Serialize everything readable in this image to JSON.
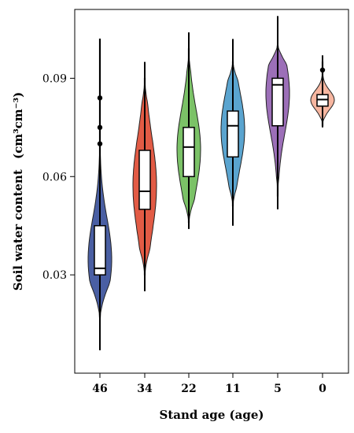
{
  "chart_data": {
    "type": "violin",
    "xlabel": "Stand age (age)",
    "ylabel": "Soil water content",
    "ylabel_unit": "(cm³cm⁻³)",
    "categories": [
      "46",
      "34",
      "22",
      "11",
      "5",
      "0"
    ],
    "ylim": [
      0.0,
      0.111
    ],
    "yticks": [
      0.03,
      0.06,
      0.09
    ],
    "ytick_labels": [
      "0.03",
      "0.06",
      "0.09"
    ],
    "grid": false,
    "legend": "none",
    "groups": [
      {
        "name": "46",
        "color": "#4a5fa3",
        "whisker_low": 0.007,
        "whisker_high": 0.102,
        "q1": 0.03,
        "median": 0.032,
        "q3": 0.045,
        "violin_min": 0.017,
        "violin_max": 0.102,
        "outliers": [
          0.084,
          0.075,
          0.07
        ]
      },
      {
        "name": "34",
        "color": "#e25b45",
        "whisker_low": 0.025,
        "whisker_high": 0.095,
        "q1": 0.05,
        "median": 0.0555,
        "q3": 0.068,
        "violin_min": 0.03,
        "violin_max": 0.09,
        "outliers": []
      },
      {
        "name": "22",
        "color": "#7bc267",
        "whisker_low": 0.044,
        "whisker_high": 0.104,
        "q1": 0.06,
        "median": 0.069,
        "q3": 0.075,
        "violin_min": 0.046,
        "violin_max": 0.099,
        "outliers": []
      },
      {
        "name": "11",
        "color": "#5aa4cf",
        "whisker_low": 0.045,
        "whisker_high": 0.102,
        "q1": 0.066,
        "median": 0.0755,
        "q3": 0.08,
        "violin_min": 0.051,
        "violin_max": 0.095,
        "outliers": []
      },
      {
        "name": "5",
        "color": "#9c6fb8",
        "whisker_low": 0.05,
        "whisker_high": 0.109,
        "q1": 0.0755,
        "median": 0.088,
        "q3": 0.09,
        "violin_min": 0.054,
        "violin_max": 0.1,
        "outliers": []
      },
      {
        "name": "0",
        "color": "#f7b6a0",
        "whisker_low": 0.075,
        "whisker_high": 0.097,
        "q1": 0.0815,
        "median": 0.0835,
        "q3": 0.085,
        "violin_min": 0.0755,
        "violin_max": 0.095,
        "outliers": [
          0.0925
        ]
      }
    ]
  }
}
